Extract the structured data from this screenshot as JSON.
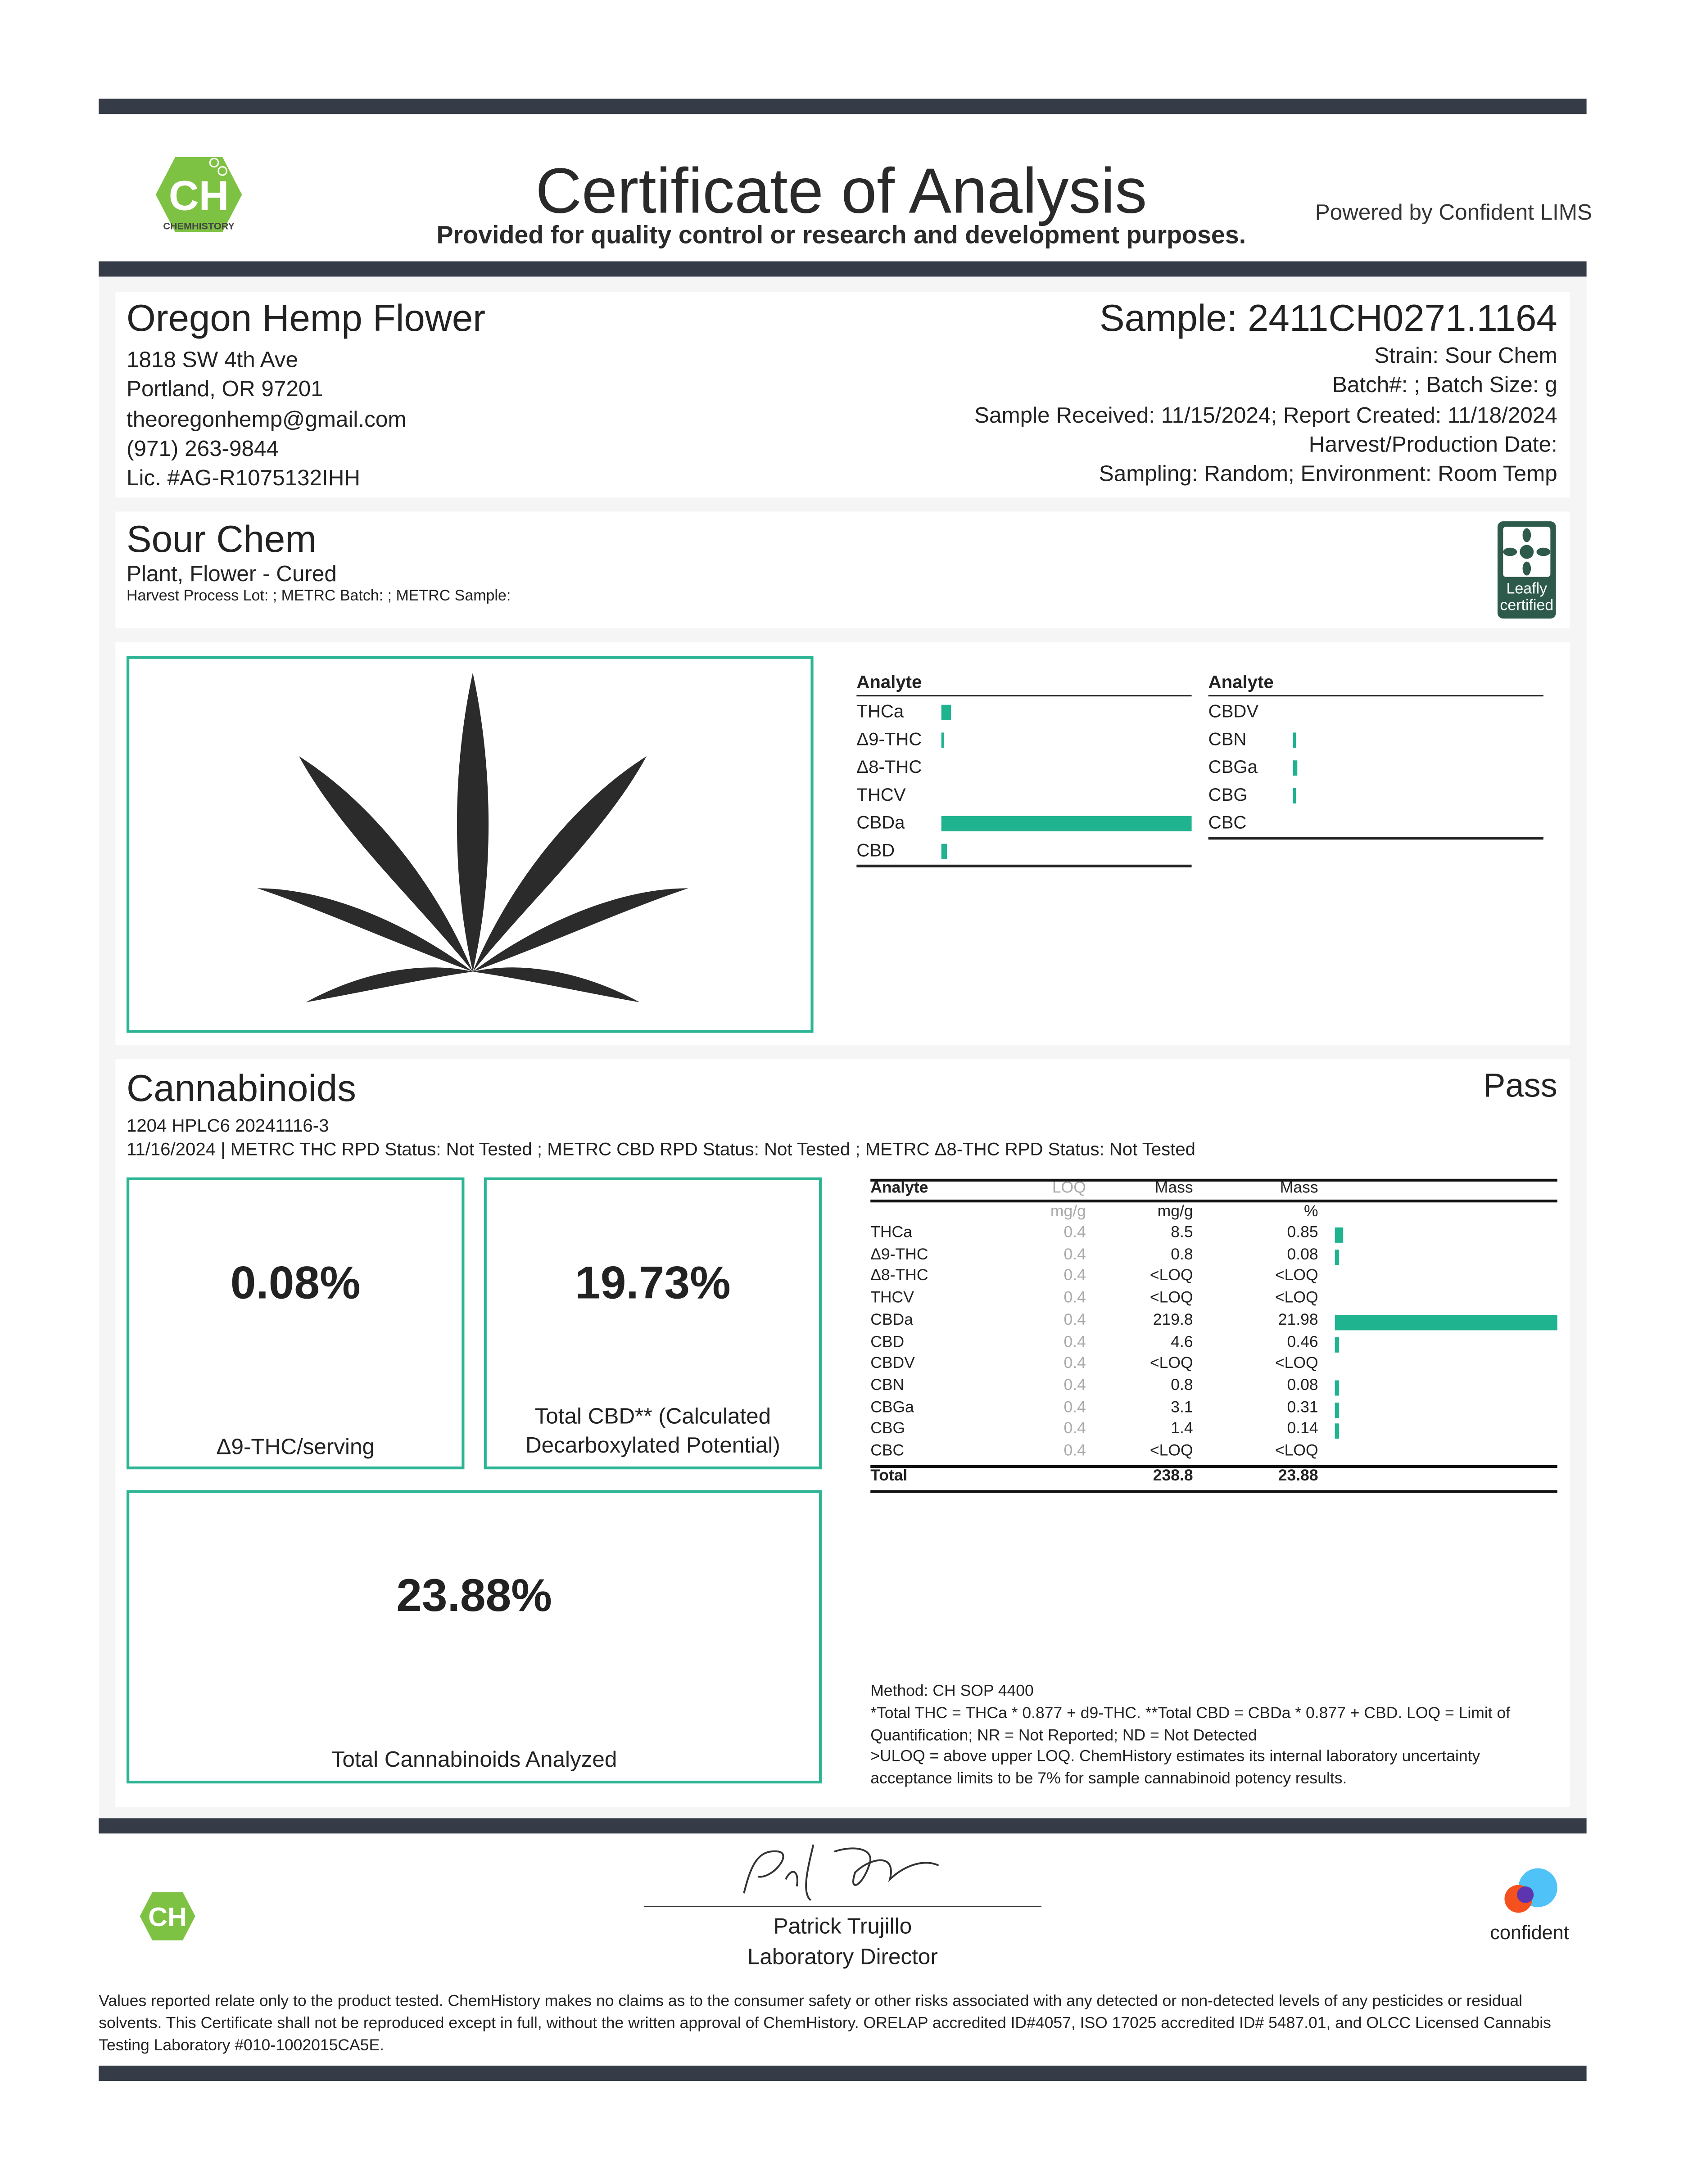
{
  "header": {
    "title": "Certificate of Analysis",
    "subtitle": "Provided for quality control or research and development purposes.",
    "powered_by": "Powered by Confident LIMS",
    "logo_text": "CHEMHISTORY"
  },
  "client": {
    "name": "Oregon Hemp Flower",
    "address1": "1818 SW 4th Ave",
    "address2": "Portland, OR 97201",
    "email": "theoregonhemp@gmail.com",
    "phone": "(971) 263-9844",
    "license": "Lic. #AG-R1075132IHH"
  },
  "sample": {
    "id": "Sample: 2411CH0271.1164",
    "strain": "Strain: Sour Chem",
    "batch": "Batch#: ; Batch Size:  g",
    "dates": "Sample Received: 11/15/2024; Report Created: 11/18/2024",
    "harvest": "Harvest/Production Date:",
    "sampling": "Sampling: Random; Environment: Room Temp"
  },
  "product": {
    "name": "Sour Chem",
    "type": "Plant, Flower - Cured",
    "lots": "Harvest Process Lot: ; METRC Batch: ; METRC Sample:",
    "badge": "Leafly certified"
  },
  "summary_chart": {
    "header": "Analyte",
    "left": [
      {
        "name": "THCa",
        "pct": 0.85
      },
      {
        "name": "Δ9-THC",
        "pct": 0.08
      },
      {
        "name": "Δ8-THC",
        "pct": 0
      },
      {
        "name": "THCV",
        "pct": 0
      },
      {
        "name": "CBDa",
        "pct": 21.98
      },
      {
        "name": "CBD",
        "pct": 0.46
      }
    ],
    "right": [
      {
        "name": "CBDV",
        "pct": 0
      },
      {
        "name": "CBN",
        "pct": 0.08
      },
      {
        "name": "CBGa",
        "pct": 0.31
      },
      {
        "name": "CBG",
        "pct": 0.14
      },
      {
        "name": "CBC",
        "pct": 0
      }
    ]
  },
  "cannabinoids": {
    "title": "Cannabinoids",
    "status": "Pass",
    "method_line": "1204 HPLC6 20241116-3",
    "rpd_line": "11/16/2024 | METRC THC RPD Status: Not Tested ; METRC CBD RPD Status: Not Tested ; METRC Δ8-THC RPD Status: Not Tested",
    "boxes": [
      {
        "value": "0.08%",
        "label": "Δ9-THC/serving"
      },
      {
        "value": "19.73%",
        "label": "Total CBD** (Calculated Decarboxylated Potential)"
      },
      {
        "value": "23.88%",
        "label": "Total Cannabinoids Analyzed"
      }
    ],
    "table": {
      "headers": [
        "Analyte",
        "LOQ",
        "Mass",
        "Mass"
      ],
      "units": [
        "",
        "mg/g",
        "mg/g",
        "%"
      ],
      "rows": [
        [
          "THCa",
          "0.4",
          "8.5",
          "0.85"
        ],
        [
          "Δ9-THC",
          "0.4",
          "0.8",
          "0.08"
        ],
        [
          "Δ8-THC",
          "0.4",
          "<LOQ",
          "<LOQ"
        ],
        [
          "THCV",
          "0.4",
          "<LOQ",
          "<LOQ"
        ],
        [
          "CBDa",
          "0.4",
          "219.8",
          "21.98"
        ],
        [
          "CBD",
          "0.4",
          "4.6",
          "0.46"
        ],
        [
          "CBDV",
          "0.4",
          "<LOQ",
          "<LOQ"
        ],
        [
          "CBN",
          "0.4",
          "0.8",
          "0.08"
        ],
        [
          "CBGa",
          "0.4",
          "3.1",
          "0.31"
        ],
        [
          "CBG",
          "0.4",
          "1.4",
          "0.14"
        ],
        [
          "CBC",
          "0.4",
          "<LOQ",
          "<LOQ"
        ]
      ],
      "total": [
        "Total",
        "",
        "238.8",
        "23.88"
      ]
    },
    "notes": [
      "Method: CH SOP 4400",
      "*Total THC = THCa * 0.877 + d9-THC. **Total CBD = CBDa * 0.877 + CBD. LOQ = Limit of Quantification; NR = Not Reported; ND = Not Detected",
      ">ULOQ = above upper LOQ. ChemHistory estimates its internal laboratory uncertainty acceptance limits to be 7% for sample cannabinoid potency results."
    ]
  },
  "footer": {
    "signer": "Patrick Trujillo",
    "role": "Laboratory Director",
    "confident": "confident",
    "disclaimer": "Values reported relate only to the product tested. ChemHistory makes no claims as to the consumer safety or other risks associated with any detected or non-detected levels of any pesticides or residual solvents. This Certificate shall not be reproduced except in full, without the written approval of ChemHistory.  ORELAP accredited ID#4057, ISO 17025 accredited ID# 5487.01, and OLCC Licensed Cannabis Testing Laboratory #010-1002015CA5E."
  },
  "colors": {
    "bar": "#353c47",
    "teal": "#20b390",
    "logo_green": "#7dc242",
    "leafly": "#2d5a4a"
  }
}
